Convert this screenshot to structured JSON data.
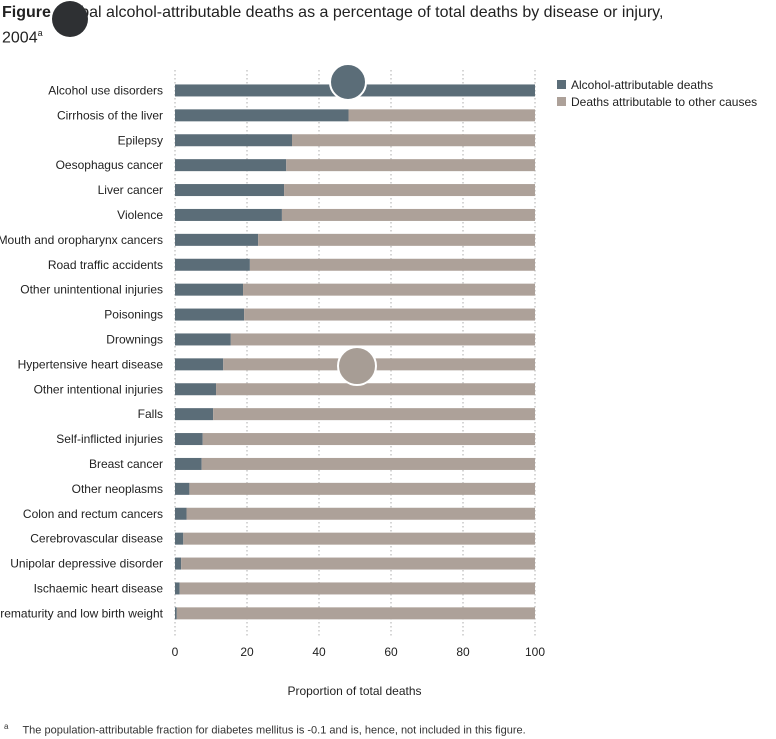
{
  "figure": {
    "label": "Figure",
    "title": "Global alcohol-attributable deaths as a percentage of total deaths by disease or injury,",
    "year": "2004",
    "note_marker": "a"
  },
  "footnote": {
    "marker": "a",
    "text": "The population-attributable fraction for diabetes mellitus is -0.1 and is, hence, not included in this figure."
  },
  "colors": {
    "alcohol": "#5b6d78",
    "other": "#ada199",
    "grid": "#999999",
    "redaction": "#2e3033",
    "redaction_light": "#a79d95"
  },
  "chart_data": {
    "type": "bar",
    "orientation": "horizontal",
    "stacked": true,
    "categories": [
      "Alcohol use disorders",
      "Cirrhosis of the liver",
      "Epilepsy",
      "Oesophagus cancer",
      "Liver cancer",
      "Violence",
      "Mouth and oropharynx cancers",
      "Road traffic accidents",
      "Other unintentional injuries",
      "Poisonings",
      "Drownings",
      "Hypertensive heart disease",
      "Other intentional injuries",
      "Falls",
      "Self-inflicted injuries",
      "Breast cancer",
      "Other neoplasms",
      "Colon and rectum cancers",
      "Cerebrovascular disease",
      "Unipolar depressive disorder",
      "Ischaemic heart disease",
      "Prematurity and low birth weight"
    ],
    "series": [
      {
        "name": "Alcohol-attributable deaths",
        "values": [
          100,
          48.2,
          32.5,
          30.9,
          30.3,
          29.7,
          23.1,
          20.8,
          18.9,
          19.2,
          15.5,
          13.4,
          11.4,
          10.6,
          7.7,
          7.4,
          4.0,
          3.2,
          2.3,
          1.7,
          1.3,
          0.5
        ]
      },
      {
        "name": "Deaths attributable to other causes",
        "values": [
          0,
          51.8,
          67.5,
          69.1,
          69.7,
          70.3,
          76.9,
          79.2,
          81.1,
          80.8,
          84.5,
          86.6,
          88.6,
          89.4,
          92.3,
          92.6,
          96.0,
          96.8,
          97.7,
          98.3,
          98.7,
          99.5
        ]
      }
    ],
    "xlabel": "Proportion of total deaths",
    "xlim": [
      0,
      100
    ],
    "xticks": [
      0,
      20,
      40,
      60,
      80,
      100
    ],
    "grid": "vertical dotted",
    "legend": "top-right"
  }
}
